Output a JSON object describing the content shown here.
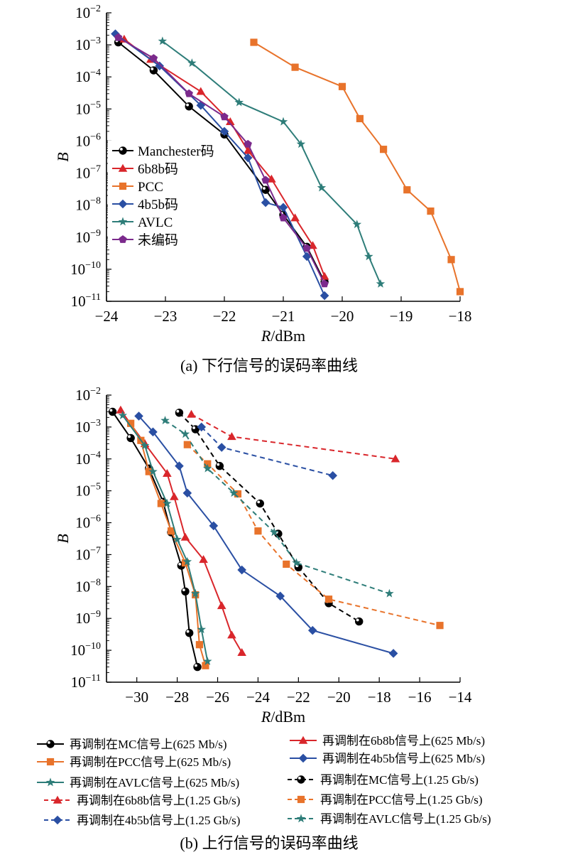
{
  "chart_data": [
    {
      "type": "line",
      "panel": "a",
      "caption": "(a) 下行信号的误码率曲线",
      "xlabel": "R/dBm",
      "ylabel": "B",
      "xlim": [
        -24,
        -18
      ],
      "ylim": [
        1e-11,
        0.01
      ],
      "yscale": "log",
      "xticks": [
        -24,
        -23,
        -22,
        -21,
        -20,
        -19,
        -18
      ],
      "yticks": [
        1e-11,
        1e-10,
        1e-09,
        1e-08,
        1e-07,
        1e-06,
        1e-05,
        0.0001,
        0.001,
        0.01
      ],
      "legend_position": "center-left",
      "series": [
        {
          "name": "Manchester码",
          "color": "#000000",
          "marker": "ball",
          "dash": false,
          "x": [
            -23.8,
            -23.2,
            -22.6,
            -22.0,
            -21.3,
            -21.0,
            -20.6,
            -20.3
          ],
          "y": [
            0.0012,
            0.00016,
            1.2e-05,
            1.6e-06,
            3e-08,
            5e-09,
            5e-10,
            4e-11
          ]
        },
        {
          "name": "6b8b码",
          "color": "#d9262b",
          "marker": "triangle",
          "dash": false,
          "x": [
            -23.7,
            -23.25,
            -22.4,
            -21.9,
            -21.6,
            -21.2,
            -20.8,
            -20.5,
            -20.3
          ],
          "y": [
            0.0015,
            0.00035,
            3.5e-05,
            4e-06,
            5e-07,
            6.5e-08,
            4e-09,
            5.5e-10,
            6e-11
          ]
        },
        {
          "name": "PCC",
          "color": "#e8732b",
          "marker": "square",
          "dash": false,
          "x": [
            -21.5,
            -20.8,
            -20.0,
            -19.7,
            -19.3,
            -18.9,
            -18.5,
            -18.15,
            -18.0
          ],
          "y": [
            0.0012,
            0.0002,
            5e-05,
            5e-06,
            5.5e-07,
            3e-08,
            6.5e-09,
            2e-10,
            2e-11
          ]
        },
        {
          "name": "4b5b码",
          "color": "#2a4fa3",
          "marker": "diamond",
          "dash": false,
          "x": [
            -23.85,
            -23.1,
            -22.4,
            -22.0,
            -21.6,
            -21.3,
            -21.0,
            -20.6,
            -20.3
          ],
          "y": [
            0.0022,
            0.00022,
            1.3e-05,
            2e-06,
            3e-07,
            1.2e-08,
            8.5e-09,
            2.5e-10,
            1.5e-11
          ]
        },
        {
          "name": "AVLC",
          "color": "#2e7d79",
          "marker": "star",
          "dash": false,
          "x": [
            -23.05,
            -22.55,
            -21.75,
            -21.0,
            -20.7,
            -20.35,
            -19.75,
            -19.55,
            -19.35
          ],
          "y": [
            0.0013,
            0.00027,
            1.6e-05,
            4e-06,
            8e-07,
            3.5e-08,
            2.5e-09,
            2.5e-10,
            3.5e-11
          ]
        },
        {
          "name": "未编码",
          "color": "#7b2a8c",
          "marker": "pentagon",
          "dash": false,
          "x": [
            -23.8,
            -23.2,
            -22.6,
            -22.0,
            -21.6,
            -21.3,
            -21.0,
            -20.6,
            -20.3
          ],
          "y": [
            0.0017,
            0.00038,
            3e-05,
            5.7e-06,
            8e-07,
            6e-08,
            4e-09,
            4.5e-10,
            3.5e-11
          ]
        }
      ]
    },
    {
      "type": "line",
      "panel": "b",
      "caption": "(b) 上行信号的误码率曲线",
      "xlabel": "R/dBm",
      "ylabel": "B",
      "xlim": [
        -31.5,
        -14
      ],
      "ylim": [
        1e-11,
        0.01
      ],
      "yscale": "log",
      "xticks": [
        -30,
        -28,
        -26,
        -24,
        -22,
        -20,
        -18,
        -16,
        -14
      ],
      "yticks": [
        1e-11,
        1e-10,
        1e-09,
        1e-08,
        1e-07,
        1e-06,
        1e-05,
        0.0001,
        0.001,
        0.01
      ],
      "legend_position": "below",
      "series": [
        {
          "name": "再调制在MC信号上(625 Mb/s)",
          "color": "#000000",
          "marker": "ball",
          "dash": false,
          "x": [
            -31.2,
            -30.3,
            -29.4,
            -28.7,
            -28.3,
            -27.8,
            -27.6,
            -27.4,
            -27.0
          ],
          "y": [
            0.003,
            0.00045,
            5e-05,
            4.5e-06,
            5e-07,
            4.5e-08,
            7e-09,
            3.5e-10,
            3e-11
          ]
        },
        {
          "name": "再调制在6b8b信号上(625 Mb/s)",
          "color": "#d9262b",
          "marker": "triangle",
          "dash": false,
          "x": [
            -30.8,
            -29.6,
            -28.5,
            -28.15,
            -27.6,
            -26.7,
            -25.8,
            -25.3,
            -24.8
          ],
          "y": [
            0.0034,
            0.0003,
            3.5e-05,
            6.5e-06,
            3.5e-07,
            7e-08,
            2.5e-09,
            3e-10,
            8.5e-11
          ]
        },
        {
          "name": "再调制在PCC信号上(625 Mb/s)",
          "color": "#e8732b",
          "marker": "square",
          "dash": false,
          "x": [
            -30.3,
            -29.8,
            -29.4,
            -28.8,
            -28.3,
            -27.6,
            -27.1,
            -26.9,
            -26.6
          ],
          "y": [
            0.0013,
            0.00038,
            4e-05,
            4e-06,
            5.5e-07,
            5.5e-08,
            5.5e-09,
            1.5e-10,
            3.3e-11
          ]
        },
        {
          "name": "再调制在4b5b信号上(625 Mb/s)",
          "color": "#2a4fa3",
          "marker": "diamond",
          "dash": false,
          "x": [
            -29.9,
            -29.2,
            -27.9,
            -27.5,
            -26.2,
            -24.8,
            -22.9,
            -21.3,
            -17.3
          ],
          "y": [
            0.0022,
            0.0007,
            6e-05,
            8.5e-06,
            8e-07,
            3.3e-08,
            5e-09,
            4.2e-10,
            8e-11
          ]
        },
        {
          "name": "再调制在AVLC信号上(625 Mb/s)",
          "color": "#2e7d79",
          "marker": "star",
          "dash": false,
          "x": [
            -30.7,
            -29.6,
            -29.2,
            -28.5,
            -28.0,
            -27.5,
            -27.1,
            -26.8,
            -26.5
          ],
          "y": [
            0.0023,
            0.00026,
            4e-05,
            4e-06,
            3e-07,
            6e-08,
            6e-09,
            4.5e-10,
            4.5e-11
          ]
        },
        {
          "name": "再调制在MC信号上(1.25 Gb/s)",
          "color": "#000000",
          "marker": "ball",
          "dash": true,
          "x": [
            -27.9,
            -27.1,
            -25.9,
            -23.9,
            -23.0,
            -22.0,
            -20.5,
            -19.0
          ],
          "y": [
            0.0028,
            0.00085,
            6e-05,
            4e-06,
            4.5e-07,
            4e-08,
            3e-09,
            8e-10
          ]
        },
        {
          "name": "再调制在6b8b信号上(1.25 Gb/s)",
          "color": "#d9262b",
          "marker": "triangle",
          "dash": true,
          "x": [
            -27.3,
            -25.3,
            -17.2
          ],
          "y": [
            0.0025,
            0.0005,
            0.0001
          ]
        },
        {
          "name": "再调制在PCC信号上(1.25 Gb/s)",
          "color": "#e8732b",
          "marker": "square",
          "dash": true,
          "x": [
            -27.5,
            -26.5,
            -25.0,
            -24.0,
            -22.6,
            -20.5,
            -15.0
          ],
          "y": [
            0.00028,
            7e-05,
            8e-06,
            5.5e-07,
            5e-08,
            4e-09,
            6e-10
          ]
        },
        {
          "name": "再调制在4b5b信号上(1.25 Gb/s)",
          "color": "#2a4fa3",
          "marker": "diamond",
          "dash": true,
          "x": [
            -26.8,
            -25.8,
            -20.3
          ],
          "y": [
            0.001,
            0.00023,
            3e-05
          ]
        },
        {
          "name": "再调制在AVLC信号上(1.25 Gb/s)",
          "color": "#2e7d79",
          "marker": "star",
          "dash": true,
          "x": [
            -28.6,
            -27.6,
            -26.5,
            -25.2,
            -23.2,
            -22.1,
            -17.5
          ],
          "y": [
            0.0016,
            0.0006,
            5e-05,
            8.5e-06,
            5e-07,
            5.5e-08,
            6e-09
          ]
        }
      ]
    }
  ]
}
